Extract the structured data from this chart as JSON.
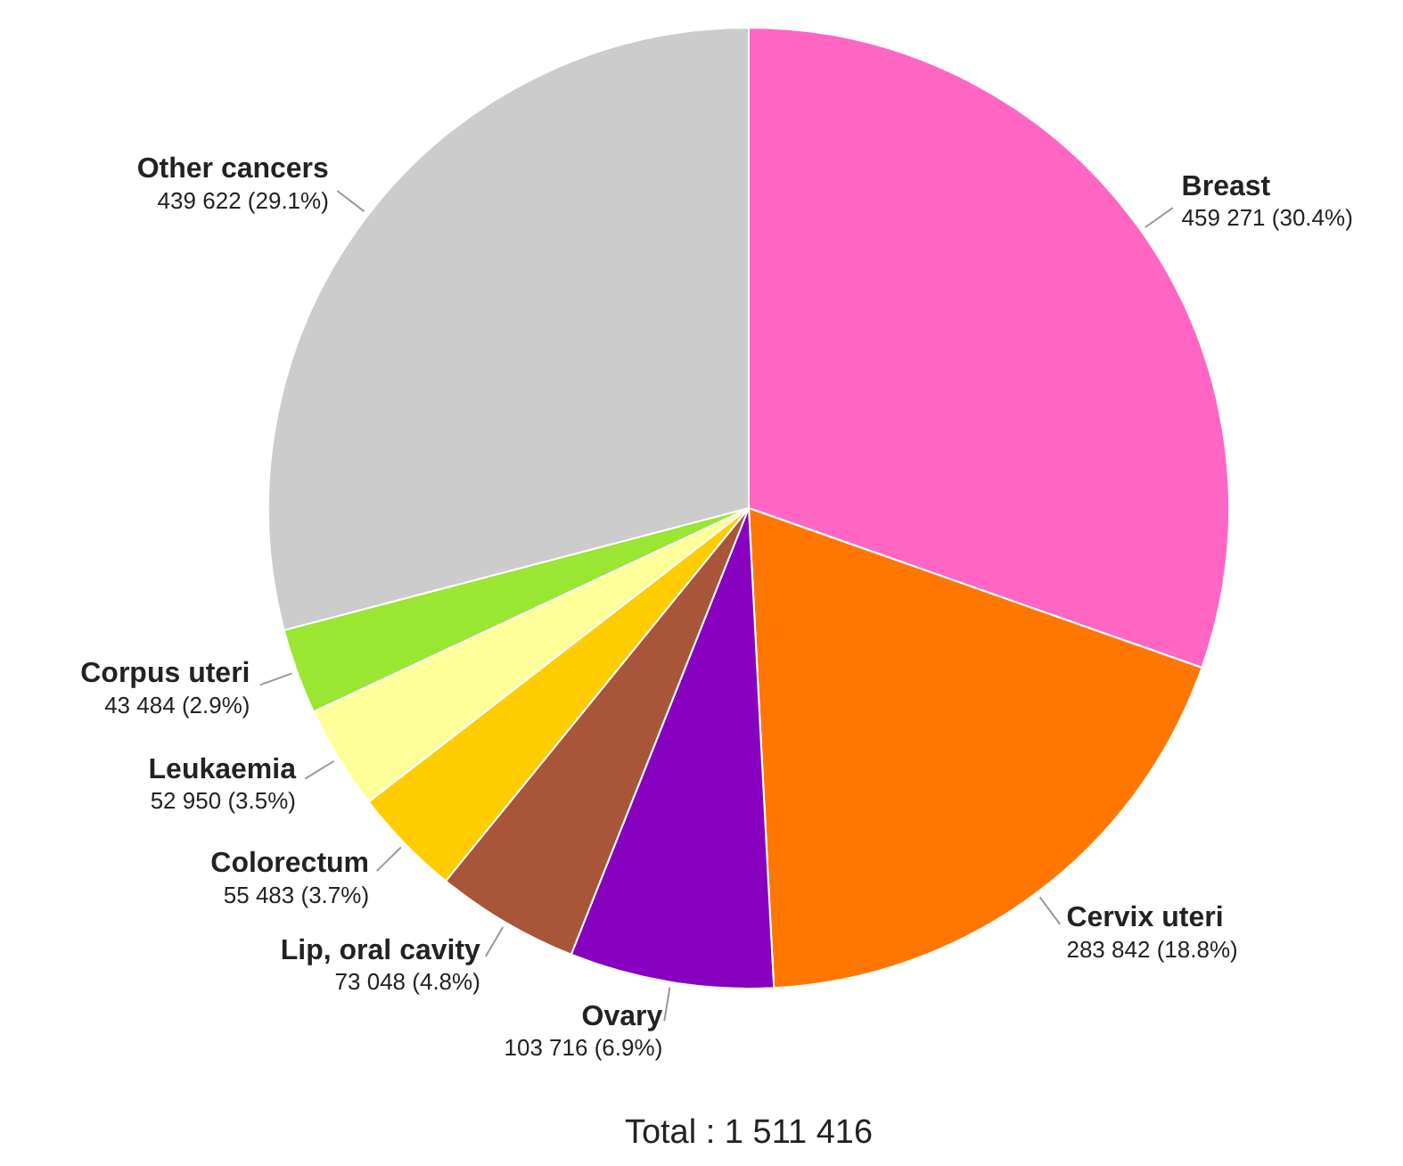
{
  "chart_data": {
    "type": "pie",
    "categories": [
      "Breast",
      "Cervix uteri",
      "Ovary",
      "Lip, oral cavity",
      "Colorectum",
      "Leukaemia",
      "Corpus uteri",
      "Other cancers"
    ],
    "values": [
      459271,
      283842,
      103716,
      73048,
      55483,
      52950,
      43484,
      439622
    ],
    "value_labels": [
      "459 271 (30.4%)",
      "283 842 (18.8%)",
      "103 716 (6.9%)",
      "73 048 (4.8%)",
      "55 483 (3.7%)",
      "52 950 (3.5%)",
      "43 484 (2.9%)",
      "439 622 (29.1%)"
    ],
    "colors": [
      "#ff66c4",
      "#ff7700",
      "#8800c0",
      "#a8553a",
      "#ffcc00",
      "#ffff99",
      "#99e633",
      "#cccccc"
    ],
    "legend": false,
    "annotations": [
      "Total : 1 511 416"
    ]
  }
}
